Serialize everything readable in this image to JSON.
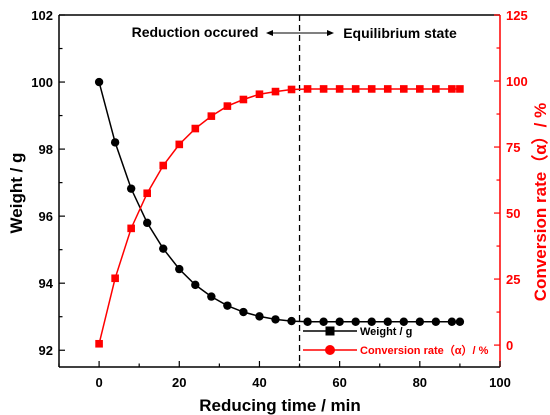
{
  "chart_data": {
    "type": "line",
    "xlabel": "Reducing time / min",
    "ylabel_left": "Weight / g",
    "ylabel_right": "Conversion rate（α）/ %",
    "xlim": [
      -10,
      100
    ],
    "xticks": [
      "0",
      "20",
      "40",
      "60",
      "80",
      "100"
    ],
    "xtick_values": [
      0,
      20,
      40,
      60,
      80,
      100
    ],
    "ylim_left": [
      91.5,
      102
    ],
    "yticks_left": [
      "92",
      "94",
      "96",
      "98",
      "100",
      "102"
    ],
    "ytick_values_left": [
      92,
      94,
      96,
      98,
      100,
      102
    ],
    "ylim_right": [
      -8.3,
      125
    ],
    "yticks_right": [
      "0",
      "25",
      "50",
      "75",
      "100",
      "125"
    ],
    "ytick_values_right": [
      0,
      25,
      50,
      75,
      100,
      125
    ],
    "grid": false,
    "legend_position": "bottom-right",
    "divider_x": 50,
    "annotation_left": "Reduction occured",
    "annotation_right": "Equilibrium state",
    "series": [
      {
        "name": "Weight / g",
        "axis": "left",
        "color": "#000000",
        "marker": "circle",
        "x": [
          0,
          4,
          8,
          12,
          16,
          20,
          24,
          28,
          32,
          36,
          40,
          44,
          48,
          52,
          56,
          60,
          64,
          68,
          72,
          76,
          80,
          84,
          88,
          90
        ],
        "y": [
          100.0,
          98.2,
          96.82,
          95.8,
          95.03,
          94.42,
          93.95,
          93.6,
          93.33,
          93.14,
          93.01,
          92.92,
          92.87,
          92.85,
          92.85,
          92.85,
          92.85,
          92.85,
          92.85,
          92.85,
          92.85,
          92.85,
          92.85,
          92.85
        ]
      },
      {
        "name": "Conversion rate（α）/ %",
        "axis": "right",
        "color": "#ff0000",
        "marker": "square",
        "x": [
          0,
          4,
          8,
          12,
          16,
          20,
          24,
          28,
          32,
          36,
          40,
          44,
          48,
          52,
          56,
          60,
          64,
          68,
          72,
          76,
          80,
          84,
          88,
          90
        ],
        "y": [
          0.5,
          25.3,
          44.2,
          57.5,
          68.0,
          76.0,
          82.0,
          86.7,
          90.5,
          93.0,
          95.0,
          96.0,
          96.8,
          97.0,
          97.0,
          97.0,
          97.0,
          97.0,
          97.0,
          97.0,
          97.0,
          97.0,
          97.0,
          97.0
        ]
      }
    ]
  }
}
